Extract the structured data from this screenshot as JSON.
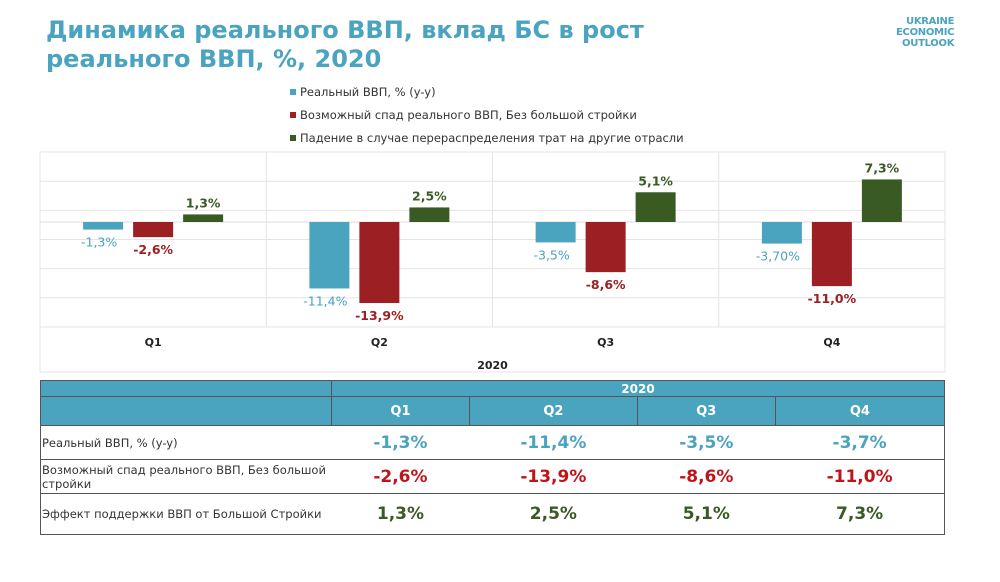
{
  "title": "Динамика реального ВВП, вклад БС в рост реального ВВП, %, 2020",
  "logo": "UKRAINE ECONOMIC OUTLOOK",
  "colors": {
    "accent": "#4aa3bf",
    "blue": "#4aa3bf",
    "red": "#9b1f23",
    "green": "#3a5a23"
  },
  "chart_data": {
    "type": "bar",
    "categories": [
      "Q1",
      "Q2",
      "Q3",
      "Q4"
    ],
    "xlabel": "2020",
    "series": [
      {
        "name": "Реальный ВВП, % (y-y)",
        "values": [
          -1.3,
          -11.4,
          -3.5,
          -3.7
        ],
        "labels": [
          "-1,3%",
          "-11,4%",
          "-3,5%",
          "-3,70%"
        ],
        "color": "#4aa3bf"
      },
      {
        "name": "Возможный спад реального ВВП, Без большой стройки",
        "values": [
          -2.6,
          -13.9,
          -8.6,
          -11.0
        ],
        "labels": [
          "-2,6%",
          "-13,9%",
          "-8,6%",
          "-11,0%"
        ],
        "color": "#9b1f23"
      },
      {
        "name": "Падение в случае перераспределения трат на другие отрасли",
        "values": [
          1.3,
          2.5,
          5.1,
          7.3
        ],
        "labels": [
          "1,3%",
          "2,5%",
          "5,1%",
          "7,3%"
        ],
        "color": "#3a5a23"
      }
    ],
    "ylim": [
      -18,
      12
    ],
    "grid": true,
    "legend": "top"
  },
  "table": {
    "year": "2020",
    "quarters": [
      "Q1",
      "Q2",
      "Q3",
      "Q4"
    ],
    "rows": [
      {
        "label": "Реальный ВВП, % (y-y)",
        "values": [
          "-1,3%",
          "-11,4%",
          "-3,5%",
          "-3,7%"
        ],
        "color": "#4aa3bf"
      },
      {
        "label": "Возможный спад реального ВВП, Без большой стройки",
        "values": [
          "-2,6%",
          "-13,9%",
          "-8,6%",
          "-11,0%"
        ],
        "color": "#c0141a"
      },
      {
        "label": "Эффект поддержки ВВП от Большой Стройки",
        "values": [
          "1,3%",
          "2,5%",
          "5,1%",
          "7,3%"
        ],
        "color": "#3a5a23"
      }
    ]
  }
}
